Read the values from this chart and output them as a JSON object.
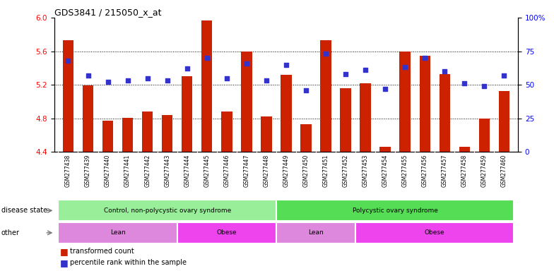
{
  "title": "GDS3841 / 215050_x_at",
  "samples": [
    "GSM277438",
    "GSM277439",
    "GSM277440",
    "GSM277441",
    "GSM277442",
    "GSM277443",
    "GSM277444",
    "GSM277445",
    "GSM277446",
    "GSM277447",
    "GSM277448",
    "GSM277449",
    "GSM277450",
    "GSM277451",
    "GSM277452",
    "GSM277453",
    "GSM277454",
    "GSM277455",
    "GSM277456",
    "GSM277457",
    "GSM277458",
    "GSM277459",
    "GSM277460"
  ],
  "red_values": [
    5.73,
    5.19,
    4.77,
    4.81,
    4.88,
    4.84,
    5.3,
    5.97,
    4.88,
    5.6,
    4.82,
    5.32,
    4.73,
    5.73,
    5.16,
    5.22,
    4.46,
    5.6,
    5.55,
    5.33,
    4.46,
    4.8,
    5.13
  ],
  "blue_values": [
    68,
    57,
    52,
    53,
    55,
    53,
    62,
    70,
    55,
    66,
    53,
    65,
    46,
    73,
    58,
    61,
    47,
    63,
    70,
    60,
    51,
    49,
    57
  ],
  "ylim_left": [
    4.4,
    6.0
  ],
  "ylim_right": [
    0,
    100
  ],
  "yticks_left": [
    4.4,
    4.8,
    5.2,
    5.6,
    6.0
  ],
  "yticks_right": [
    0,
    25,
    50,
    75,
    100
  ],
  "ytick_labels_right": [
    "0",
    "25",
    "50",
    "75",
    "100%"
  ],
  "bar_color": "#cc2200",
  "dot_color": "#3333cc",
  "disease_state_groups": [
    {
      "label": "Control, non-polycystic ovary syndrome",
      "start": 0,
      "end": 10,
      "color": "#99ee99"
    },
    {
      "label": "Polycystic ovary syndrome",
      "start": 11,
      "end": 22,
      "color": "#55dd55"
    }
  ],
  "other_groups": [
    {
      "label": "Lean",
      "start": 0,
      "end": 5,
      "color": "#dd88dd"
    },
    {
      "label": "Obese",
      "start": 6,
      "end": 10,
      "color": "#ee44ee"
    },
    {
      "label": "Lean",
      "start": 11,
      "end": 14,
      "color": "#dd88dd"
    },
    {
      "label": "Obese",
      "start": 15,
      "end": 22,
      "color": "#ee44ee"
    }
  ],
  "tick_bg_color": "#cccccc",
  "legend_red_label": "transformed count",
  "legend_blue_label": "percentile rank within the sample"
}
